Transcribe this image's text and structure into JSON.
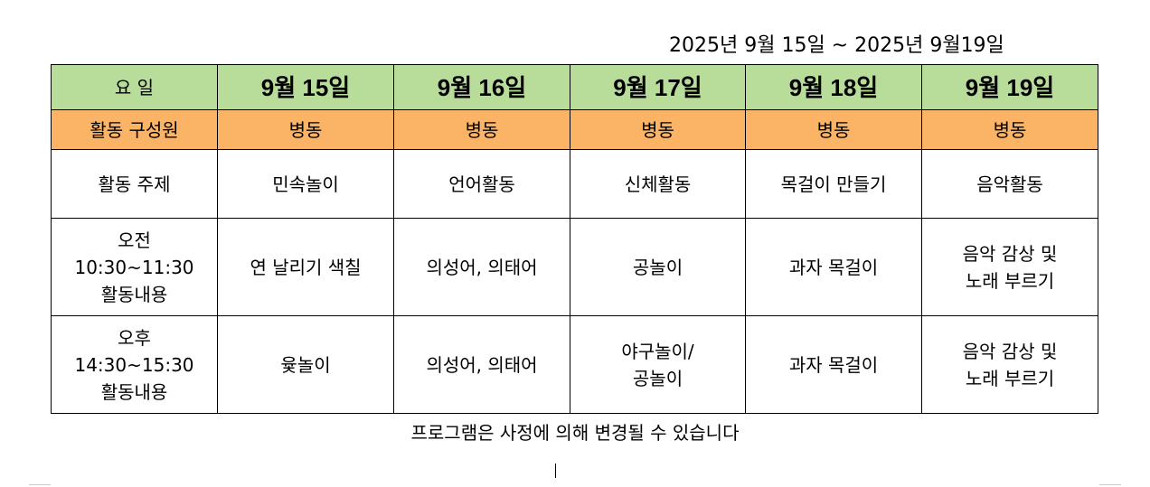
{
  "period": "2025년 9월 15일 ~ 2025년 9월19일",
  "table": {
    "header": {
      "label": "요    일",
      "dates": [
        "9월 15일",
        "9월 16일",
        "9월 17일",
        "9월 18일",
        "9월 19일"
      ]
    },
    "members": {
      "label": "활동 구성원",
      "values": [
        "병동",
        "병동",
        "병동",
        "병동",
        "병동"
      ]
    },
    "theme": {
      "label": "활동 주제",
      "values": [
        "민속놀이",
        "언어활동",
        "신체활동",
        "목걸이 만들기",
        "음악활동"
      ]
    },
    "am": {
      "label": [
        "오전",
        "10:30~11:30",
        "활동내용"
      ],
      "values": [
        [
          "연 날리기 색칠"
        ],
        [
          "의성어, 의태어"
        ],
        [
          "공놀이"
        ],
        [
          "과자 목걸이"
        ],
        [
          "음악 감상 및",
          "노래 부르기"
        ]
      ]
    },
    "pm": {
      "label": [
        "오후",
        "14:30~15:30",
        "활동내용"
      ],
      "values": [
        [
          "윷놀이"
        ],
        [
          "의성어, 의태어"
        ],
        [
          "야구놀이/",
          "공놀이"
        ],
        [
          "과자 목걸이"
        ],
        [
          "음악 감상 및",
          "노래 부르기"
        ]
      ]
    }
  },
  "note": "프로그램은 사정에 의해 변경될 수 있습니다",
  "colors": {
    "header_bg": "#b8dd9b",
    "members_bg": "#fbb465"
  }
}
